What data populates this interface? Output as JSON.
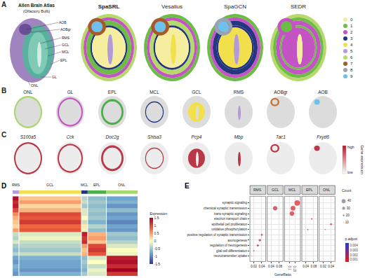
{
  "panel_labels": [
    "A",
    "B",
    "C",
    "D",
    "E"
  ],
  "panel_a": {
    "atlas": {
      "title": "Allen Brain Atlas",
      "subtitle": "(Olfactory Bulb)",
      "labels": [
        "AOB",
        "AOBgr",
        "RMS",
        "GCL",
        "MCL",
        "EPL",
        "GL",
        "ONL"
      ]
    },
    "methods": [
      {
        "name": "SpaSRL",
        "clusters": [
          6,
          2,
          1,
          3,
          0,
          5,
          7,
          9
        ]
      },
      {
        "name": "Vesalius",
        "clusters": [
          1,
          2,
          6,
          3,
          0,
          4,
          7,
          9
        ]
      },
      {
        "name": "SpaGCN",
        "clusters": [
          1,
          2,
          3,
          3,
          4,
          5,
          8,
          9
        ]
      },
      {
        "name": "SEDR",
        "clusters": [
          6,
          1,
          2,
          1,
          2,
          0,
          2,
          1
        ]
      }
    ],
    "legend": {
      "labels": [
        "0",
        "1",
        "2",
        "3",
        "4",
        "5",
        "6",
        "7",
        "8",
        "9"
      ],
      "colors": [
        "#f4ee9e",
        "#6cbd45",
        "#c453c4",
        "#26357f",
        "#f1e04c",
        "#b49bd8",
        "#b5d96a",
        "#a65a2a",
        "#9aa4b0",
        "#6fc0ec"
      ]
    }
  },
  "panel_b": {
    "regions": [
      {
        "name": "ONL",
        "color": "#a6d96a"
      },
      {
        "name": "GL",
        "color": "#c453c4"
      },
      {
        "name": "EPL",
        "color": "#4daf4a"
      },
      {
        "name": "MCL",
        "color": "#26357f"
      },
      {
        "name": "GCL",
        "color": "#f1e04c"
      },
      {
        "name": "RMS",
        "color": "#b49bd8"
      },
      {
        "name": "AOBgr",
        "color": "#c8702e"
      },
      {
        "name": "AOB",
        "color": "#6fc0ec"
      }
    ]
  },
  "panel_c": {
    "genes": [
      {
        "name": "S100a5",
        "region": "ONL"
      },
      {
        "name": "Cck",
        "region": "GL"
      },
      {
        "name": "Doc2g",
        "region": "EPL"
      },
      {
        "name": "Shisa3",
        "region": "MCL"
      },
      {
        "name": "Pcp4",
        "region": "GCL"
      },
      {
        "name": "Mbp",
        "region": "RMS"
      },
      {
        "name": "Tac1",
        "region": "AOBgr"
      },
      {
        "name": "Fxyd6",
        "region": "AOB"
      }
    ],
    "colorbar": {
      "title": "Gene expression",
      "high": "high",
      "low": "low",
      "color": "#b2182b"
    }
  },
  "chart_data": [
    {
      "type": "heatmap",
      "column_groups": [
        "RMS",
        "GCL",
        "MCL",
        "EPL",
        "ONL"
      ],
      "colors": [
        "#b49bd8",
        "#f1e04c",
        "#26357f",
        "#4daf4a",
        "#a6d96a"
      ],
      "cell_counts": [
        30,
        300,
        30,
        90,
        150
      ],
      "cells": [
        [
          1.4,
          0.3,
          -0.4,
          -0.6,
          -0.8
        ],
        [
          1.2,
          0.5,
          -0.3,
          -0.5,
          -0.7
        ],
        [
          1.3,
          0.2,
          -0.5,
          -0.6,
          -0.9
        ],
        [
          1.0,
          0.4,
          -0.2,
          -0.5,
          -0.6
        ],
        [
          0.6,
          1.0,
          -0.2,
          -0.6,
          -0.9
        ],
        [
          0.4,
          0.9,
          0.0,
          -0.5,
          -0.8
        ],
        [
          0.3,
          1.1,
          -0.3,
          -0.7,
          -1.0
        ],
        [
          0.2,
          0.8,
          0.1,
          -0.4,
          -0.8
        ],
        [
          0.5,
          0.9,
          -0.1,
          -0.6,
          -0.9
        ],
        [
          -0.3,
          -0.2,
          1.3,
          0.4,
          -0.5
        ],
        [
          -0.4,
          -0.1,
          1.1,
          0.5,
          -0.6
        ],
        [
          -0.2,
          -0.3,
          1.2,
          0.3,
          -0.4
        ],
        [
          -0.5,
          -0.4,
          0.5,
          1.0,
          -0.2
        ],
        [
          -0.6,
          -0.5,
          0.3,
          1.1,
          0.0
        ],
        [
          -0.4,
          -0.3,
          0.4,
          0.9,
          -0.1
        ],
        [
          -0.8,
          -0.7,
          -0.6,
          -0.2,
          1.3
        ],
        [
          -0.9,
          -0.8,
          -0.5,
          0.0,
          1.4
        ],
        [
          -0.7,
          -0.8,
          -0.6,
          -0.3,
          1.2
        ],
        [
          -0.8,
          -0.9,
          -0.7,
          -0.1,
          1.5
        ],
        [
          -0.9,
          -0.7,
          -0.5,
          -0.2,
          1.1
        ]
      ],
      "colorbar": {
        "title": "Expression",
        "range": [
          -1.5,
          1.5
        ],
        "ticks": [
          -1.5,
          -1,
          -0.5,
          0,
          0.5,
          1,
          1.5
        ]
      },
      "tick_labels": false
    },
    {
      "type": "scatter",
      "terms": [
        "synaptic signaling",
        "chemical synaptic transmission",
        "trans-synaptic signaling",
        "electron transport chain",
        "epithelial cell proliferation",
        "oxidative phosphorylation",
        "positive regulation of synaptic transmission",
        "axonogenesis",
        "regulation of neurogenesis",
        "glial cell differentiation",
        "neurotransmitter uptake"
      ],
      "x_label": "GeneRatio",
      "grid": true,
      "facets": [
        {
          "name": "RMS",
          "xlim": [
            0.01,
            0.05
          ],
          "xticks": [
            0.02,
            0.04
          ],
          "terms": [
            "positive regulation of synaptic transmission",
            "axonogenesis",
            "regulation of neurogenesis",
            "glial cell differentiation",
            "neurotransmitter uptake"
          ],
          "x": [
            0.04,
            0.035,
            0.03,
            0.02,
            0.015
          ],
          "counts": [
            15,
            20,
            18,
            10,
            6
          ],
          "p_adjust": [
            0.0012,
            0.0015,
            0.0018,
            0.001,
            0.0008
          ]
        },
        {
          "name": "GCL",
          "xlim": [
            0.02,
            0.1
          ],
          "xticks": [
            0.04,
            0.08
          ],
          "terms": [
            "chemical synaptic transmission"
          ],
          "x": [
            0.06
          ],
          "counts": [
            35
          ],
          "p_adjust": [
            0.001
          ]
        },
        {
          "name": "MCL",
          "xlim": [
            0.05,
            0.2
          ],
          "xticks": [
            0.1,
            0.15
          ],
          "terms": [
            "synaptic signaling",
            "chemical synaptic transmission",
            "trans-synaptic signaling"
          ],
          "x": [
            0.17,
            0.13,
            0.12
          ],
          "counts": [
            45,
            38,
            36
          ],
          "p_adjust": [
            0.0006,
            0.0007,
            0.0008
          ]
        },
        {
          "name": "EPL",
          "xlim": [
            0.02,
            0.1
          ],
          "xticks": [
            0.04,
            0.08
          ],
          "terms": [
            "electron transport chain",
            "oxidative phosphorylation"
          ],
          "x": [
            0.07,
            0.05
          ],
          "counts": [
            12,
            10
          ],
          "p_adjust": [
            0.002,
            0.0025
          ]
        },
        {
          "name": "ONL",
          "xlim": [
            0.01,
            0.05
          ],
          "xticks": [
            0.02,
            0.04
          ],
          "terms": [
            "epithelial cell proliferation",
            "oxidative phosphorylation"
          ],
          "x": [
            0.04,
            0.025
          ],
          "counts": [
            15,
            8
          ],
          "p_adjust": [
            0.0015,
            0.0042
          ]
        }
      ],
      "size_legend": {
        "title": "Count",
        "values": [
          10,
          20,
          30,
          40
        ]
      },
      "colorbar": {
        "title": "p.adjust",
        "range": [
          0.0005,
          0.0045
        ],
        "ticks": [
          0.001,
          0.002,
          0.003,
          0.004
        ]
      }
    }
  ]
}
